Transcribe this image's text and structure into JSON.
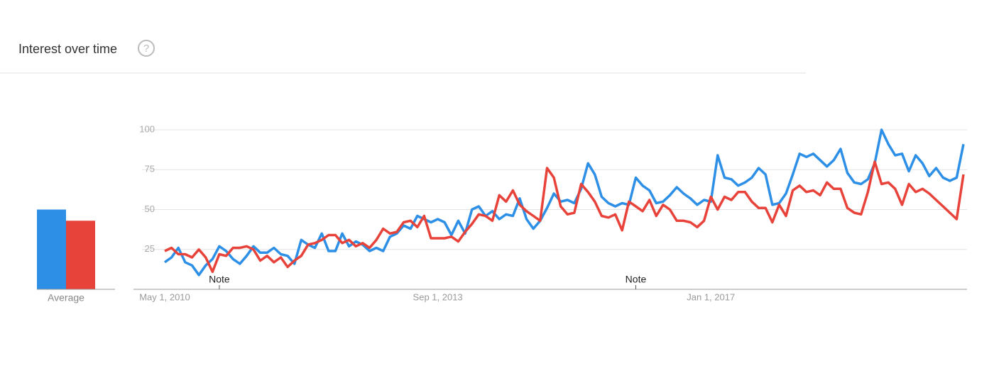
{
  "header": {
    "title": "Interest over time"
  },
  "chart_data": [
    {
      "type": "line",
      "categories": [
        "May 1, 2010",
        null,
        null,
        null,
        null,
        null,
        null,
        null,
        null,
        null,
        null,
        null,
        null,
        null,
        null,
        null,
        null,
        null,
        null,
        null,
        null,
        null,
        null,
        null,
        null,
        null,
        null,
        null,
        null,
        null,
        null,
        null,
        null,
        null,
        null,
        null,
        null,
        null,
        null,
        null,
        "Sep 1, 2013",
        null,
        null,
        null,
        null,
        null,
        null,
        null,
        null,
        null,
        null,
        null,
        null,
        null,
        null,
        null,
        null,
        null,
        null,
        null,
        null,
        null,
        null,
        null,
        null,
        null,
        null,
        null,
        null,
        null,
        null,
        null,
        null,
        null,
        null,
        null,
        null,
        null,
        null,
        null,
        "Jan 1, 2017",
        null,
        null,
        null,
        null,
        null,
        null,
        null,
        null,
        null,
        null,
        null,
        null,
        null,
        null,
        null,
        null,
        null,
        null,
        null,
        null,
        null,
        null,
        null,
        null,
        null,
        null,
        null,
        null,
        null,
        null,
        null,
        null,
        null,
        null,
        null,
        null,
        null
      ],
      "series": [
        {
          "color": "#2d8fe6",
          "values": [
            17,
            20,
            26,
            17,
            15,
            9,
            15,
            19,
            27,
            24,
            19,
            16,
            21,
            27,
            23,
            23,
            26,
            22,
            21,
            16,
            31,
            28,
            26,
            35,
            24,
            24,
            35,
            27,
            30,
            28,
            24,
            26,
            24,
            33,
            35,
            40,
            38,
            46,
            44,
            42,
            44,
            42,
            34,
            43,
            35,
            50,
            52,
            46,
            49,
            44,
            47,
            46,
            57,
            44,
            38,
            43,
            51,
            60,
            55,
            56,
            54,
            63,
            79,
            72,
            58,
            54,
            52,
            54,
            53,
            70,
            65,
            62,
            54,
            55,
            59,
            64,
            60,
            57,
            53,
            56,
            55,
            84,
            70,
            69,
            65,
            67,
            70,
            76,
            72,
            53,
            54,
            60,
            72,
            85,
            83,
            85,
            81,
            77,
            81,
            88,
            73,
            67,
            66,
            69,
            79,
            100,
            91,
            84,
            85,
            74,
            84,
            79,
            71,
            76,
            70,
            68,
            70,
            91
          ]
        },
        {
          "color": "#e8433a",
          "values": [
            24,
            26,
            22,
            22,
            20,
            25,
            20,
            11,
            22,
            21,
            26,
            26,
            27,
            25,
            18,
            21,
            17,
            20,
            14,
            18,
            21,
            28,
            29,
            31,
            34,
            34,
            29,
            31,
            27,
            29,
            26,
            31,
            38,
            35,
            36,
            42,
            43,
            39,
            46,
            32,
            32,
            32,
            33,
            30,
            36,
            41,
            47,
            46,
            43,
            59,
            55,
            62,
            53,
            49,
            46,
            43,
            76,
            70,
            52,
            47,
            48,
            66,
            61,
            55,
            46,
            45,
            47,
            37,
            55,
            52,
            49,
            56,
            46,
            53,
            50,
            43,
            43,
            42,
            39,
            43,
            58,
            50,
            58,
            56,
            61,
            61,
            55,
            51,
            51,
            42,
            53,
            46,
            62,
            65,
            61,
            62,
            59,
            67,
            63,
            63,
            51,
            48,
            47,
            61,
            80,
            66,
            67,
            63,
            53,
            66,
            61,
            63,
            60,
            56,
            52,
            48,
            44,
            72
          ]
        }
      ],
      "ylim": [
        0,
        100
      ],
      "yticks": [
        25,
        50,
        75,
        100
      ],
      "grid": true,
      "annotations": [
        {
          "text": "Note",
          "index": 8
        },
        {
          "text": "Note",
          "index": 69
        }
      ]
    },
    {
      "type": "bar",
      "categories": [
        "Average"
      ],
      "series": [
        {
          "color": "#2d8fe6",
          "values": [
            50
          ]
        },
        {
          "color": "#e8433a",
          "values": [
            43
          ]
        }
      ],
      "ylim": [
        0,
        100
      ]
    }
  ]
}
